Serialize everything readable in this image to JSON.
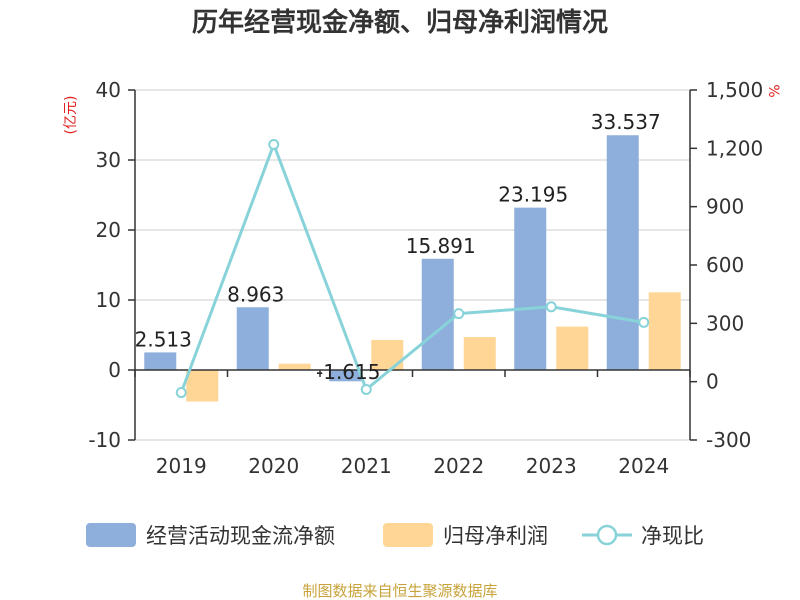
{
  "chart_data": {
    "type": "bar",
    "title": "历年经营现金净额、归母净利润情况",
    "categories": [
      "2019",
      "2020",
      "2021",
      "2022",
      "2023",
      "2024"
    ],
    "left_axis": {
      "unit": "(亿元)",
      "ylim": [
        -10,
        40
      ],
      "ticks": [
        "40",
        "30",
        "20",
        "10",
        "0",
        "-10"
      ]
    },
    "right_axis": {
      "unit": "%",
      "ylim": [
        -300,
        1500
      ],
      "ticks": [
        "1,500",
        "1,200",
        "900",
        "600",
        "300",
        "0",
        "-300"
      ]
    },
    "series": [
      {
        "name": "经营活动现金流净额",
        "type": "bar",
        "axis": "left",
        "color": "#8eaedb",
        "values": [
          2.513,
          8.963,
          -1.615,
          15.891,
          23.195,
          33.537
        ],
        "labels": [
          "2.513",
          "8.963",
          "-1.615",
          "15.891",
          "23.195",
          "33.537"
        ]
      },
      {
        "name": "归母净利润",
        "type": "bar",
        "axis": "left",
        "color": "#ffd695",
        "values": [
          -4.5,
          0.9,
          4.3,
          4.7,
          6.2,
          11.1
        ]
      },
      {
        "name": "净现比",
        "type": "line",
        "axis": "right",
        "color": "#88d3da",
        "values": [
          -56,
          1220,
          -40,
          350,
          385,
          305
        ]
      }
    ],
    "legend_position": "bottom",
    "grid": true
  },
  "footer": {
    "source": "制图数据来自恒生聚源数据库",
    "source_color": "#c8a23a"
  },
  "colors": {
    "axis": "#333333",
    "grid": "#cccccc",
    "unit": "#e02020"
  }
}
